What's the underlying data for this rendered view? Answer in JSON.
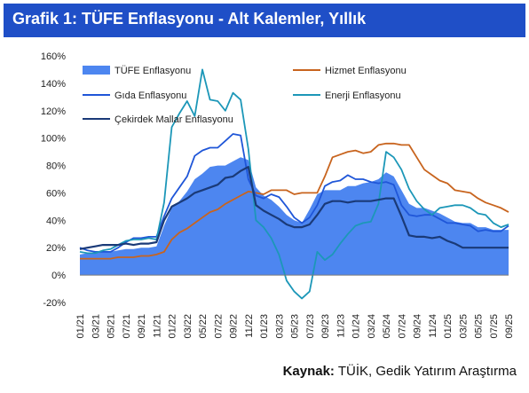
{
  "header": {
    "title": "Grafik 1: TÜFE Enflasyonu - Alt Kalemler, Yıllık"
  },
  "footer": {
    "source_label": "Kaynak:",
    "source_text": "TÜİK, Gedik Yatırım Araştırma"
  },
  "colors": {
    "title_bg": "#1f4fc7",
    "tufe": "#4d86f0",
    "hizmet": "#c8641e",
    "gida": "#1f56d8",
    "enerji": "#1c97b8",
    "cekirdek": "#1a3a78"
  },
  "chart_data": {
    "type": "line",
    "title": "",
    "xlabel": "",
    "ylabel": "",
    "ylim": [
      -20,
      160
    ],
    "y_ticks": [
      "-20%",
      "0%",
      "20%",
      "40%",
      "60%",
      "80%",
      "100%",
      "120%",
      "140%",
      "160%"
    ],
    "x_tick_labels": [
      "01/21",
      "03/21",
      "05/21",
      "07/21",
      "09/21",
      "11/21",
      "01/22",
      "03/22",
      "05/22",
      "07/22",
      "09/22",
      "11/22",
      "01/23",
      "03/23",
      "05/23",
      "07/23",
      "09/23",
      "11/23",
      "01/24",
      "03/24",
      "05/24",
      "07/24",
      "09/24",
      "11/24",
      "01/25",
      "03/25",
      "05/25",
      "07/25",
      "09/25"
    ],
    "x": [
      "01/21",
      "02/21",
      "03/21",
      "04/21",
      "05/21",
      "06/21",
      "07/21",
      "08/21",
      "09/21",
      "10/21",
      "11/21",
      "12/21",
      "01/22",
      "02/22",
      "03/22",
      "04/22",
      "05/22",
      "06/22",
      "07/22",
      "08/22",
      "09/22",
      "10/22",
      "11/22",
      "12/22",
      "01/23",
      "02/23",
      "03/23",
      "04/23",
      "05/23",
      "06/23",
      "07/23",
      "08/23",
      "09/23",
      "10/23",
      "11/23",
      "12/23",
      "01/24",
      "02/24",
      "03/24",
      "04/24",
      "05/24",
      "06/24",
      "07/24",
      "08/24",
      "09/24",
      "10/24",
      "11/24",
      "12/24",
      "01/25",
      "02/25",
      "03/25",
      "04/25",
      "05/25",
      "06/25",
      "07/25",
      "08/25",
      "09/25"
    ],
    "legend_position": "top",
    "grid": false,
    "series": [
      {
        "name": "TÜFE Enflasyonu",
        "type": "area",
        "values": [
          15,
          16,
          16,
          17,
          17,
          18,
          19,
          19,
          20,
          20,
          21,
          36,
          49,
          54,
          61,
          70,
          74,
          79,
          80,
          80,
          83,
          86,
          84,
          64,
          58,
          55,
          50,
          44,
          40,
          38,
          48,
          59,
          62,
          62,
          62,
          65,
          65,
          67,
          68,
          70,
          75,
          72,
          62,
          52,
          49,
          49,
          47,
          45,
          42,
          39,
          38,
          38,
          35,
          35,
          33,
          33,
          33
        ]
      },
      {
        "name": "Hizmet Enflasyonu",
        "type": "line",
        "values": [
          12,
          12,
          12,
          12,
          12,
          13,
          13,
          13,
          14,
          14,
          15,
          17,
          26,
          31,
          34,
          38,
          42,
          46,
          48,
          52,
          55,
          58,
          61,
          60,
          59,
          62,
          62,
          62,
          59,
          60,
          60,
          60,
          72,
          86,
          88,
          90,
          91,
          89,
          90,
          95,
          96,
          96,
          95,
          95,
          86,
          77,
          73,
          69,
          67,
          62,
          61,
          60,
          56,
          53,
          51,
          49,
          46
        ]
      },
      {
        "name": "Gıda Enflasyonu",
        "type": "line",
        "values": [
          20,
          18,
          17,
          17,
          17,
          20,
          24,
          27,
          27,
          28,
          28,
          43,
          56,
          64,
          72,
          87,
          91,
          93,
          93,
          98,
          103,
          102,
          70,
          58,
          56,
          59,
          57,
          50,
          42,
          38,
          42,
          51,
          65,
          68,
          69,
          73,
          70,
          70,
          68,
          67,
          68,
          66,
          51,
          44,
          43,
          44,
          44,
          41,
          38,
          38,
          37,
          36,
          32,
          33,
          32,
          32,
          36
        ]
      },
      {
        "name": "Enerji Enflasyonu",
        "type": "line",
        "values": [
          17,
          16,
          16,
          18,
          19,
          22,
          25,
          26,
          26,
          27,
          26,
          53,
          108,
          118,
          127,
          116,
          150,
          128,
          127,
          120,
          133,
          128,
          92,
          40,
          35,
          27,
          15,
          -4,
          -12,
          -17,
          -12,
          17,
          11,
          15,
          23,
          30,
          36,
          38,
          39,
          52,
          90,
          86,
          77,
          63,
          54,
          48,
          44,
          49,
          50,
          51,
          51,
          49,
          45,
          44,
          38,
          35,
          37
        ]
      },
      {
        "name": "Çekirdek Mallar Enflasyonu",
        "type": "line",
        "values": [
          19,
          20,
          21,
          22,
          22,
          22,
          23,
          22,
          23,
          23,
          24,
          40,
          50,
          53,
          56,
          60,
          62,
          64,
          66,
          71,
          72,
          76,
          79,
          51,
          47,
          44,
          41,
          37,
          35,
          35,
          37,
          44,
          52,
          54,
          54,
          53,
          54,
          54,
          54,
          55,
          56,
          56,
          43,
          29,
          28,
          28,
          27,
          28,
          25,
          23,
          20,
          20,
          20,
          20,
          20,
          20,
          20
        ]
      }
    ]
  }
}
